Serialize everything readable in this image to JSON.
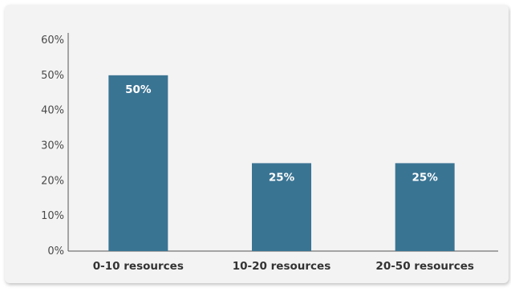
{
  "chart_data": {
    "type": "bar",
    "categories": [
      "0-10 resources",
      "10-20 resources",
      "20-50 resources"
    ],
    "values": [
      50,
      25,
      25
    ],
    "data_labels": [
      "50%",
      "25%",
      "25%"
    ],
    "y_ticks": [
      "0%",
      "10%",
      "20%",
      "30%",
      "40%",
      "50%",
      "60%"
    ],
    "ylim": [
      0,
      60
    ],
    "grid": false,
    "bar_color": "#3a7493"
  }
}
